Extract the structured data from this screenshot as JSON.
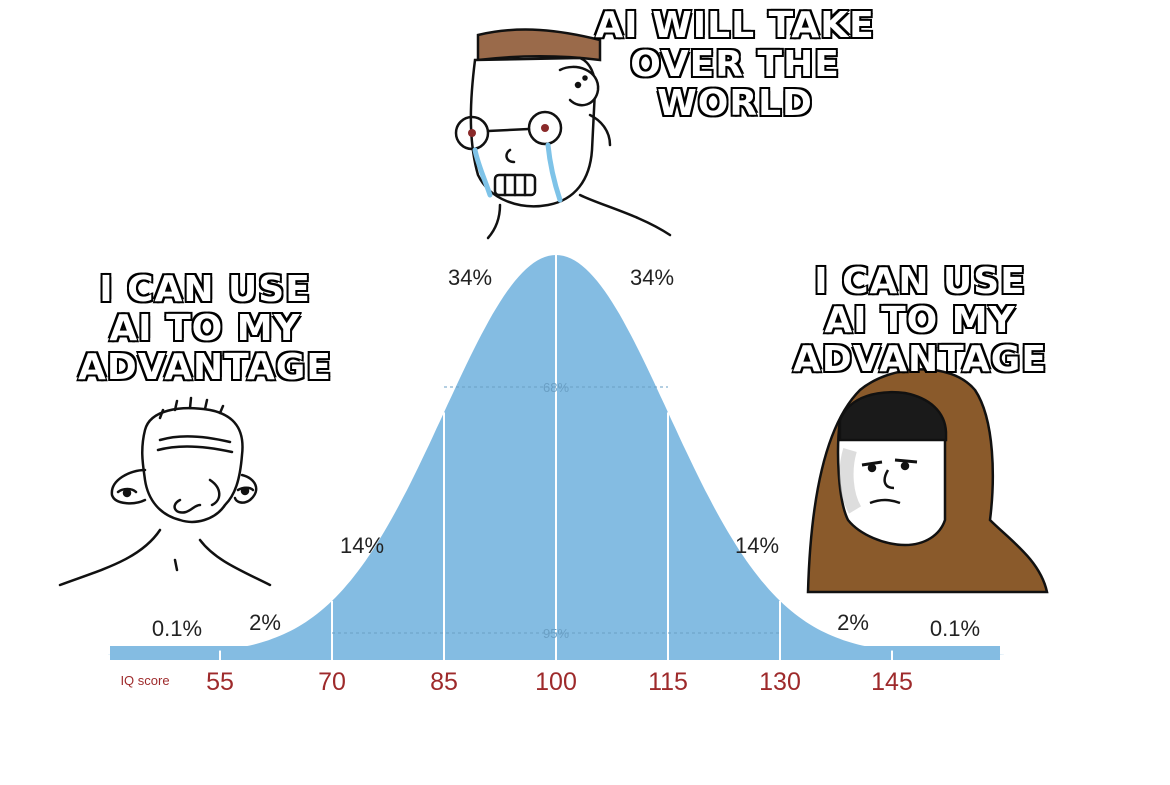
{
  "captions": {
    "top": [
      "AI WILL TAKE",
      "OVER THE",
      "WORLD"
    ],
    "left": [
      "I CAN USE",
      "AI TO MY",
      "ADVANTAGE"
    ],
    "right": [
      "I CAN USE",
      "AI TO MY",
      "ADVANTAGE"
    ]
  },
  "chart_data": {
    "type": "area",
    "title": "",
    "xlabel": "IQ score",
    "mean": 100,
    "sd": 15,
    "ticks": [
      55,
      70,
      85,
      100,
      115,
      130,
      145
    ],
    "band_labels": {
      "far_left": "0.1%",
      "left_2": "2%",
      "left_14": "14%",
      "left_34": "34%",
      "right_34": "34%",
      "right_14": "14%",
      "right_2": "2%",
      "far_right": "0.1%"
    },
    "ranges": {
      "one_sd": "68%",
      "two_sd": "95%"
    }
  },
  "colors": {
    "curve_fill": "#84bce2",
    "tick_label": "#9e2a2b",
    "divider": "#ffffff",
    "hood": "#8a5a2b",
    "hair_top": "#9a6a4a"
  },
  "characters": {
    "left": "smiling-simpleton-character",
    "middle": "crying-glasses-character",
    "right": "hooded-sage-character"
  }
}
